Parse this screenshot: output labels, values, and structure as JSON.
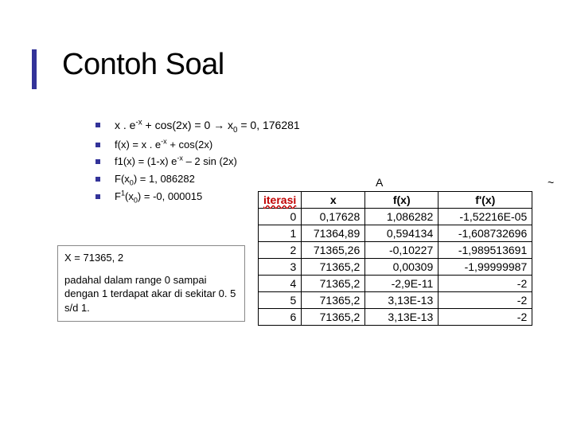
{
  "accent_color": "#333399",
  "title": "Contoh Soal",
  "bullets": {
    "b1_pre": "x . e",
    "b1_sup": "-x",
    "b1_mid": " + cos(2x) = 0 ",
    "b1_arrow": "→",
    "b1_after": " x",
    "b1_sub": "0",
    "b1_end": " = 0, 176281",
    "b2_pre": "f(x) = x . e",
    "b2_sup": "-x",
    "b2_end": " + cos(2x)",
    "b3_pre": "f1(x) = (1-x) e",
    "b3_sup": "-x",
    "b3_end": " – 2 sin (2x)",
    "b4_pre": "F(x",
    "b4_sub": "0",
    "b4_end": ") = 1, 086282",
    "b5_pre": "F",
    "b5_sup1": "1",
    "b5_mid": "(x",
    "b5_sub": "0",
    "b5_end": ") = -0, 000015"
  },
  "result": {
    "line1": "X = 71365, 2",
    "line2": "padahal dalam range 0 sampai dengan 1 terdapat akar di sekitar 0. 5 s/d 1."
  },
  "tick_a": "A",
  "tick_b": "~",
  "table": {
    "headers": {
      "iter": "iterasi",
      "x": "x",
      "fx": "f(x)",
      "fpx": "f'(x)"
    },
    "rows": [
      {
        "i": "0",
        "x": "0,17628",
        "fx": "1,086282",
        "fpx": "-1,52216E-05"
      },
      {
        "i": "1",
        "x": "71364,89",
        "fx": "0,594134",
        "fpx": "-1,608732696"
      },
      {
        "i": "2",
        "x": "71365,26",
        "fx": "-0,10227",
        "fpx": "-1,989513691"
      },
      {
        "i": "3",
        "x": "71365,2",
        "fx": "0,00309",
        "fpx": "-1,99999987"
      },
      {
        "i": "4",
        "x": "71365,2",
        "fx": "-2,9E-11",
        "fpx": "-2"
      },
      {
        "i": "5",
        "x": "71365,2",
        "fx": "3,13E-13",
        "fpx": "-2"
      },
      {
        "i": "6",
        "x": "71365,2",
        "fx": "3,13E-13",
        "fpx": "-2"
      }
    ]
  }
}
